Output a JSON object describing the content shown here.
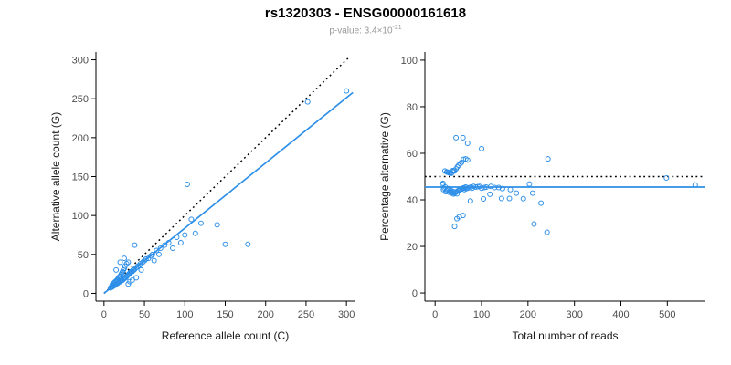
{
  "header": {
    "title": "rs1320303 - ENSG00000161618",
    "subtitle_prefix": "p-value: 3.4×10",
    "subtitle_exponent": "-21"
  },
  "style": {
    "point_color": "#2E8FE8",
    "line_color": "#2E8FE8",
    "identity_color": "#000000"
  },
  "chart_data": [
    {
      "type": "scatter",
      "name": "ref-vs-alt",
      "xlabel": "Reference allele count (C)",
      "ylabel": "Alternative allele count (G)",
      "xlim": [
        -10,
        310
      ],
      "ylim": [
        -10,
        310
      ],
      "xticks": [
        0,
        50,
        100,
        150,
        200,
        250,
        300
      ],
      "yticks": [
        0,
        50,
        100,
        150,
        200,
        250,
        300
      ],
      "grid": false,
      "point_color": "#2E8FE8",
      "lines": [
        {
          "name": "identity-line",
          "style": "dotted",
          "color": "#000000",
          "x1": 0,
          "y1": 0,
          "x2": 304,
          "y2": 304
        },
        {
          "name": "regression-line",
          "style": "solid",
          "color": "#2E8FE8",
          "x1": 0,
          "y1": 0,
          "x2": 308,
          "y2": 258
        }
      ],
      "points": [
        [
          8,
          7
        ],
        [
          9,
          8
        ],
        [
          10,
          8
        ],
        [
          10,
          11
        ],
        [
          11,
          9
        ],
        [
          12,
          10
        ],
        [
          12,
          13
        ],
        [
          13,
          10
        ],
        [
          13,
          14
        ],
        [
          14,
          11
        ],
        [
          14,
          15
        ],
        [
          15,
          12
        ],
        [
          15,
          16
        ],
        [
          15,
          30
        ],
        [
          16,
          13
        ],
        [
          16,
          17
        ],
        [
          17,
          13
        ],
        [
          17,
          18
        ],
        [
          18,
          14
        ],
        [
          18,
          20
        ],
        [
          19,
          15
        ],
        [
          19,
          21
        ],
        [
          20,
          15
        ],
        [
          20,
          22
        ],
        [
          20,
          40
        ],
        [
          21,
          16
        ],
        [
          21,
          24
        ],
        [
          22,
          17
        ],
        [
          22,
          26
        ],
        [
          23,
          17
        ],
        [
          23,
          28
        ],
        [
          24,
          18
        ],
        [
          24,
          30
        ],
        [
          25,
          19
        ],
        [
          25,
          32
        ],
        [
          25,
          45
        ],
        [
          26,
          20
        ],
        [
          26,
          35
        ],
        [
          27,
          20
        ],
        [
          28,
          22
        ],
        [
          28,
          38
        ],
        [
          29,
          23
        ],
        [
          30,
          12
        ],
        [
          30,
          24
        ],
        [
          30,
          40
        ],
        [
          31,
          25
        ],
        [
          32,
          15
        ],
        [
          32,
          26
        ],
        [
          33,
          27
        ],
        [
          34,
          28
        ],
        [
          35,
          17
        ],
        [
          35,
          28
        ],
        [
          36,
          30
        ],
        [
          37,
          30
        ],
        [
          38,
          31
        ],
        [
          38,
          62
        ],
        [
          40,
          20
        ],
        [
          40,
          33
        ],
        [
          42,
          35
        ],
        [
          44,
          36
        ],
        [
          45,
          38
        ],
        [
          46,
          30
        ],
        [
          48,
          40
        ],
        [
          50,
          42
        ],
        [
          52,
          44
        ],
        [
          55,
          45
        ],
        [
          58,
          48
        ],
        [
          60,
          50
        ],
        [
          62,
          42
        ],
        [
          65,
          55
        ],
        [
          68,
          50
        ],
        [
          70,
          58
        ],
        [
          75,
          62
        ],
        [
          80,
          65
        ],
        [
          85,
          58
        ],
        [
          90,
          72
        ],
        [
          95,
          65
        ],
        [
          100,
          75
        ],
        [
          103,
          140
        ],
        [
          108,
          95
        ],
        [
          113,
          77
        ],
        [
          120,
          90
        ],
        [
          140,
          88
        ],
        [
          150,
          63
        ],
        [
          178,
          63
        ],
        [
          252,
          246
        ],
        [
          300,
          260
        ]
      ]
    },
    {
      "type": "scatter",
      "name": "reads-vs-percentage",
      "xlabel": "Total number of reads",
      "ylabel": "Percentage alternative (G)",
      "xlim": [
        -22,
        582
      ],
      "ylim": [
        -3.5,
        103.5
      ],
      "xticks": [
        0,
        100,
        200,
        300,
        400,
        500
      ],
      "yticks": [
        0,
        20,
        40,
        60,
        80,
        100
      ],
      "grid": false,
      "point_color": "#2E8FE8",
      "lines": [
        {
          "name": "expected-50pct-line",
          "style": "dotted",
          "color": "#000000",
          "x1": -22,
          "y1": 50,
          "x2": 582,
          "y2": 50
        },
        {
          "name": "fitted-percentage-line",
          "style": "solid",
          "color": "#2E8FE8",
          "x1": -22,
          "y1": 45.5,
          "x2": 582,
          "y2": 45.5
        }
      ],
      "points": [
        [
          15,
          46.7
        ],
        [
          17,
          47.1
        ],
        [
          18,
          44.4
        ],
        [
          21,
          52.4
        ],
        [
          20,
          45.0
        ],
        [
          22,
          45.5
        ],
        [
          25,
          52.0
        ],
        [
          23,
          43.5
        ],
        [
          27,
          51.9
        ],
        [
          25,
          44.0
        ],
        [
          29,
          51.7
        ],
        [
          27,
          44.4
        ],
        [
          31,
          51.6
        ],
        [
          45,
          66.7
        ],
        [
          29,
          44.8
        ],
        [
          33,
          51.5
        ],
        [
          30,
          43.3
        ],
        [
          35,
          51.4
        ],
        [
          32,
          43.8
        ],
        [
          38,
          52.6
        ],
        [
          34,
          44.1
        ],
        [
          40,
          52.5
        ],
        [
          35,
          42.9
        ],
        [
          42,
          52.4
        ],
        [
          60,
          66.7
        ],
        [
          37,
          43.2
        ],
        [
          45,
          53.3
        ],
        [
          39,
          43.6
        ],
        [
          48,
          54.2
        ],
        [
          40,
          42.5
        ],
        [
          51,
          54.9
        ],
        [
          42,
          42.9
        ],
        [
          54,
          55.6
        ],
        [
          44,
          43.2
        ],
        [
          57,
          56.1
        ],
        [
          70,
          64.3
        ],
        [
          46,
          43.5
        ],
        [
          61,
          57.4
        ],
        [
          47,
          42.6
        ],
        [
          50,
          44.0
        ],
        [
          66,
          57.6
        ],
        [
          52,
          44.2
        ],
        [
          42,
          28.6
        ],
        [
          54,
          44.4
        ],
        [
          70,
          57.1
        ],
        [
          56,
          44.6
        ],
        [
          47,
          31.9
        ],
        [
          58,
          44.8
        ],
        [
          60,
          45.0
        ],
        [
          62,
          45.2
        ],
        [
          52,
          32.7
        ],
        [
          63,
          44.4
        ],
        [
          66,
          45.5
        ],
        [
          67,
          44.8
        ],
        [
          69,
          44.9
        ],
        [
          100,
          62.0
        ],
        [
          60,
          33.3
        ],
        [
          73,
          45.2
        ],
        [
          77,
          45.5
        ],
        [
          80,
          45.0
        ],
        [
          83,
          45.8
        ],
        [
          76,
          39.5
        ],
        [
          88,
          45.5
        ],
        [
          92,
          45.7
        ],
        [
          96,
          45.8
        ],
        [
          100,
          45.0
        ],
        [
          106,
          45.3
        ],
        [
          110,
          45.5
        ],
        [
          104,
          40.4
        ],
        [
          120,
          45.8
        ],
        [
          118,
          42.4
        ],
        [
          128,
          45.3
        ],
        [
          137,
          45.3
        ],
        [
          145,
          44.8
        ],
        [
          143,
          40.6
        ],
        [
          162,
          44.4
        ],
        [
          160,
          40.6
        ],
        [
          175,
          42.9
        ],
        [
          243,
          57.6
        ],
        [
          203,
          46.8
        ],
        [
          190,
          40.5
        ],
        [
          210,
          42.9
        ],
        [
          228,
          38.6
        ],
        [
          213,
          29.6
        ],
        [
          241,
          26.1
        ],
        [
          498,
          49.4
        ],
        [
          560,
          46.4
        ]
      ]
    }
  ]
}
